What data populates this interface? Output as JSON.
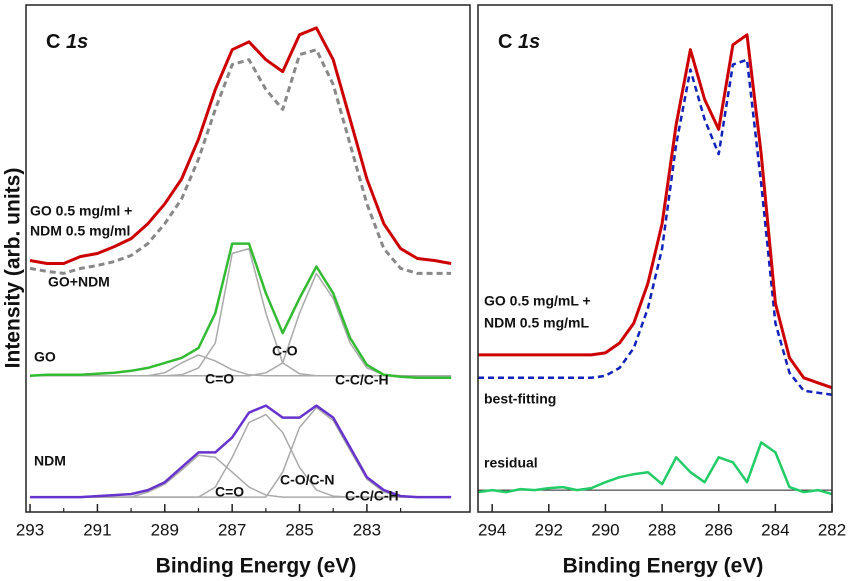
{
  "chart_data": [
    {
      "type": "line",
      "panel_label": {
        "element": "C",
        "orbital": "1s"
      },
      "ylabel": "Intensity (arb. units)",
      "xlabel": "Binding Energy (eV)",
      "xlim": [
        293.12,
        279.94
      ],
      "xticks": [
        293,
        291,
        289,
        287,
        285,
        283
      ],
      "xminorticks": [
        292,
        290,
        288,
        286,
        284,
        282
      ],
      "ylim": [
        0,
        510
      ],
      "x": [
        293,
        292.5,
        292,
        291.5,
        291,
        290.5,
        290,
        289.5,
        289,
        288.5,
        288,
        287.5,
        287,
        286.5,
        286,
        285.5,
        285,
        284.5,
        284,
        283.5,
        283,
        282.5,
        282,
        281.5,
        281,
        280.5
      ],
      "series": [
        {
          "color": "#aaaaaa",
          "dashed": false,
          "width": 1.5,
          "values": [
            137,
            137,
            137,
            137,
            137,
            137,
            137,
            137,
            140,
            150,
            158,
            152,
            143,
            138,
            137,
            137,
            137,
            137,
            137,
            137,
            137,
            137,
            137,
            137,
            137,
            137
          ]
        },
        {
          "color": "#aaaaaa",
          "dashed": false,
          "width": 1.5,
          "values": [
            137,
            137,
            137,
            137,
            137,
            137,
            137,
            137,
            137,
            138,
            145,
            170,
            260,
            265,
            200,
            150,
            139,
            137,
            137,
            137,
            137,
            137,
            137,
            137,
            137,
            137
          ]
        },
        {
          "color": "#aaaaaa",
          "dashed": false,
          "width": 1.5,
          "values": [
            137,
            137,
            137,
            137,
            137,
            137,
            137,
            137,
            137,
            137,
            137,
            137,
            137,
            137,
            140,
            150,
            200,
            240,
            215,
            170,
            145,
            138,
            137,
            137,
            137,
            137
          ]
        },
        {
          "color": "#33bb33",
          "dashed": false,
          "width": 2.5,
          "values": [
            137,
            138,
            138,
            138,
            139,
            140,
            142,
            145,
            150,
            155,
            165,
            200,
            270,
            270,
            220,
            180,
            215,
            247,
            220,
            175,
            148,
            138,
            136,
            135,
            135,
            135
          ]
        },
        {
          "color": "#aaaaaa",
          "dashed": false,
          "width": 1.5,
          "values": [
            15,
            15,
            15,
            15,
            15,
            15,
            15,
            20,
            28,
            42,
            57,
            55,
            40,
            25,
            17,
            15,
            15,
            15,
            15,
            15,
            15,
            15,
            15,
            15,
            15,
            15
          ]
        },
        {
          "color": "#aaaaaa",
          "dashed": false,
          "width": 1.5,
          "values": [
            15,
            15,
            15,
            15,
            15,
            15,
            15,
            15,
            15,
            15,
            15,
            25,
            55,
            90,
            98,
            80,
            45,
            22,
            16,
            15,
            15,
            15,
            15,
            15,
            15,
            15
          ]
        },
        {
          "color": "#aaaaaa",
          "dashed": false,
          "width": 1.5,
          "values": [
            15,
            15,
            15,
            15,
            15,
            15,
            15,
            15,
            15,
            15,
            15,
            15,
            15,
            15,
            15,
            40,
            85,
            105,
            92,
            62,
            33,
            20,
            16,
            15,
            15,
            15
          ]
        },
        {
          "color": "#6633cc",
          "dashed": false,
          "width": 2.5,
          "values": [
            15,
            15,
            15,
            15,
            16,
            17,
            18,
            22,
            30,
            45,
            60,
            60,
            75,
            100,
            107,
            95,
            95,
            107,
            95,
            65,
            35,
            22,
            16,
            15,
            15,
            15
          ]
        },
        {
          "color": "#888888",
          "dashed": true,
          "width": 3,
          "values": [
            245,
            242,
            240,
            245,
            248,
            252,
            258,
            270,
            290,
            315,
            355,
            405,
            450,
            455,
            425,
            405,
            460,
            465,
            430,
            370,
            310,
            265,
            245,
            240,
            240,
            240
          ]
        },
        {
          "color": "#cc0000",
          "dashed": false,
          "width": 3,
          "values": [
            253,
            250,
            250,
            257,
            260,
            267,
            275,
            290,
            310,
            335,
            375,
            425,
            465,
            473,
            455,
            443,
            480,
            487,
            455,
            395,
            335,
            290,
            265,
            255,
            253,
            250
          ]
        }
      ],
      "annotations": [
        {
          "text": "GO 0.5 mg/ml +"
        },
        {
          "text": "NDM 0.5 mg/ml"
        },
        {
          "text": "GO+NDM"
        },
        {
          "text": "GO"
        },
        {
          "text": "C=O"
        },
        {
          "text": "C-O"
        },
        {
          "text": "C-C/C-H"
        },
        {
          "text": "NDM"
        },
        {
          "text": "C=O"
        },
        {
          "text": "C-O/C-N"
        },
        {
          "text": "C-C/C-H"
        }
      ]
    },
    {
      "type": "line",
      "panel_label": {
        "element": "C",
        "orbital": "1s"
      },
      "xlabel": "Binding Energy (eV)",
      "xlim": [
        294.5,
        282
      ],
      "xticks": [
        294,
        292,
        290,
        288,
        286,
        284,
        282
      ],
      "ylim": [
        0,
        510
      ],
      "x": [
        294.5,
        294,
        293.5,
        293,
        292.5,
        292,
        291.5,
        291,
        290.5,
        290,
        289.5,
        289,
        288.5,
        288,
        287.5,
        287,
        286.5,
        286,
        285.5,
        285,
        284.5,
        284,
        283.5,
        283,
        282.5,
        282
      ],
      "residual_baseline": 22,
      "series": [
        {
          "color": "#22cc66",
          "dashed": false,
          "width": 2.5,
          "values": [
            20,
            22,
            20,
            23,
            22,
            24,
            25,
            22,
            24,
            30,
            35,
            38,
            40,
            28,
            55,
            40,
            30,
            55,
            50,
            30,
            70,
            60,
            25,
            20,
            22,
            18
          ]
        },
        {
          "color": "#1122bb",
          "dashed": true,
          "width": 2.5,
          "values": [
            135,
            135,
            135,
            135,
            135,
            135,
            135,
            135,
            135,
            137,
            145,
            165,
            205,
            265,
            370,
            445,
            395,
            360,
            450,
            455,
            330,
            190,
            140,
            122,
            120,
            118
          ]
        },
        {
          "color": "#cc0000",
          "dashed": false,
          "width": 3,
          "values": [
            158,
            158,
            158,
            158,
            158,
            158,
            158,
            158,
            158,
            160,
            170,
            190,
            230,
            290,
            390,
            465,
            415,
            385,
            470,
            480,
            360,
            210,
            155,
            135,
            130,
            125
          ]
        }
      ],
      "annotations": [
        {
          "text": "GO 0.5 mg/mL +"
        },
        {
          "text": "NDM 0.5 mg/mL"
        },
        {
          "text": "best-fitting"
        },
        {
          "text": "residual"
        }
      ]
    }
  ]
}
